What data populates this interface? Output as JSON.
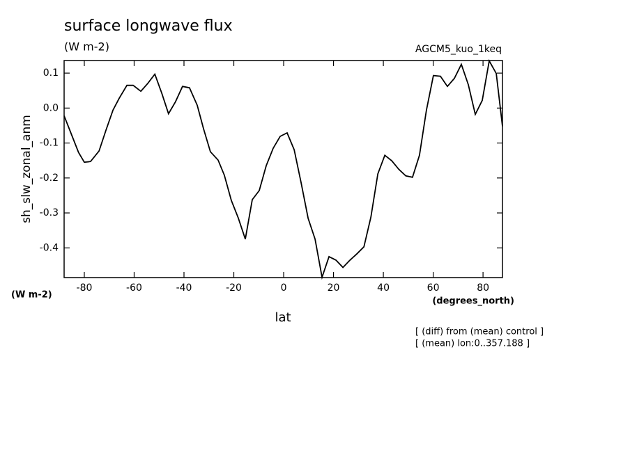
{
  "chart_data": {
    "type": "line",
    "title": "surface longwave flux",
    "subtitle": "(W m-2)",
    "experiment": "AGCM5_kuo_1keq",
    "ylabel": "sh_slw_zonal_anm",
    "yunit": "(W m-2)",
    "xlabel": "lat",
    "xunit": "(degrees_north)",
    "annotations": [
      "[ (diff) from (mean) control ]",
      "[ (mean) lon:0..357.188 ]"
    ],
    "xlim": [
      -88.1,
      87.8
    ],
    "xticks": [
      -80,
      -60,
      -40,
      -20,
      0,
      20,
      40,
      60,
      80
    ],
    "ylim": [
      -0.485,
      0.136
    ],
    "yticks": [
      -0.4,
      -0.3,
      -0.2,
      -0.1,
      {
        "value": 0,
        "label": "0.0"
      },
      0.1
    ],
    "color": "#000000",
    "x": [
      -88.1,
      -85.9,
      -82.3,
      -80,
      -77.5,
      -74.1,
      -71.3,
      -68.5,
      -66,
      -62.9,
      -60.4,
      -57.3,
      -54.5,
      -51.7,
      -48.9,
      -46.2,
      -43.4,
      -40.6,
      -37.8,
      -34.7,
      -32.2,
      -29.4,
      -26.3,
      -23.8,
      -21,
      -18.2,
      -15.4,
      -12.6,
      -9.8,
      -7,
      -4.2,
      -1.4,
      1.4,
      4.2,
      7,
      9.8,
      12.6,
      15.4,
      18.2,
      21,
      23.8,
      26.6,
      29.4,
      32.2,
      35,
      37.8,
      40.6,
      43.4,
      46.2,
      49,
      51.7,
      54.5,
      57.3,
      60.1,
      62.9,
      65.7,
      68.5,
      71.3,
      74.1,
      76.9,
      79.7,
      82.5,
      85.3,
      87.8
    ],
    "values": [
      -0.022,
      -0.062,
      -0.127,
      -0.155,
      -0.153,
      -0.123,
      -0.063,
      -0.006,
      0.028,
      0.065,
      0.065,
      0.048,
      0.071,
      0.097,
      0.042,
      -0.016,
      0.018,
      0.062,
      0.058,
      0.008,
      -0.058,
      -0.125,
      -0.149,
      -0.192,
      -0.264,
      -0.315,
      -0.375,
      -0.262,
      -0.236,
      -0.165,
      -0.115,
      -0.081,
      -0.071,
      -0.119,
      -0.214,
      -0.315,
      -0.375,
      -0.484,
      -0.425,
      -0.435,
      -0.456,
      -0.435,
      -0.417,
      -0.397,
      -0.312,
      -0.188,
      -0.135,
      -0.151,
      -0.175,
      -0.194,
      -0.198,
      -0.135,
      -0.006,
      0.093,
      0.091,
      0.062,
      0.085,
      0.125,
      0.067,
      -0.018,
      0.022,
      0.135,
      0.099,
      -0.052
    ]
  }
}
